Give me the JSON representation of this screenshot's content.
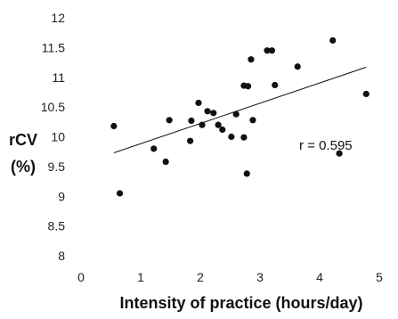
{
  "chart_data": {
    "type": "scatter",
    "title": "",
    "xlabel": "Intensity of practice (hours/day)",
    "ylabel_lines": [
      "rCV",
      "(%)"
    ],
    "xlim": [
      0,
      5
    ],
    "ylim": [
      8,
      12
    ],
    "x_ticks": [
      0,
      1,
      2,
      3,
      4,
      5
    ],
    "y_ticks": [
      8,
      8.5,
      9,
      9.5,
      10,
      10.5,
      11,
      11.5,
      12
    ],
    "y_tick_labels": [
      "8",
      "8.5",
      "9",
      "9.5",
      "10",
      "10.5",
      "11",
      "11.5",
      "12"
    ],
    "grid": false,
    "legend": "none",
    "annotation": "r = 0.595",
    "trendline": {
      "x": [
        0.55,
        4.78
      ],
      "y": [
        9.73,
        11.17
      ]
    },
    "points": [
      {
        "x": 0.55,
        "y": 10.18
      },
      {
        "x": 0.65,
        "y": 9.05
      },
      {
        "x": 1.22,
        "y": 9.8
      },
      {
        "x": 1.42,
        "y": 9.58
      },
      {
        "x": 1.48,
        "y": 10.28
      },
      {
        "x": 1.83,
        "y": 9.93
      },
      {
        "x": 1.85,
        "y": 10.27
      },
      {
        "x": 1.97,
        "y": 10.57
      },
      {
        "x": 2.03,
        "y": 10.2
      },
      {
        "x": 2.12,
        "y": 10.43
      },
      {
        "x": 2.22,
        "y": 10.4
      },
      {
        "x": 2.3,
        "y": 10.2
      },
      {
        "x": 2.37,
        "y": 10.12
      },
      {
        "x": 2.52,
        "y": 10.0
      },
      {
        "x": 2.6,
        "y": 10.38
      },
      {
        "x": 2.73,
        "y": 9.99
      },
      {
        "x": 2.73,
        "y": 10.86
      },
      {
        "x": 2.78,
        "y": 9.38
      },
      {
        "x": 2.8,
        "y": 10.85
      },
      {
        "x": 2.85,
        "y": 11.3
      },
      {
        "x": 2.88,
        "y": 10.28
      },
      {
        "x": 3.12,
        "y": 11.45
      },
      {
        "x": 3.2,
        "y": 11.45
      },
      {
        "x": 3.25,
        "y": 10.87
      },
      {
        "x": 3.63,
        "y": 11.18
      },
      {
        "x": 4.22,
        "y": 11.62
      },
      {
        "x": 4.33,
        "y": 9.72
      },
      {
        "x": 4.78,
        "y": 10.72
      }
    ]
  }
}
